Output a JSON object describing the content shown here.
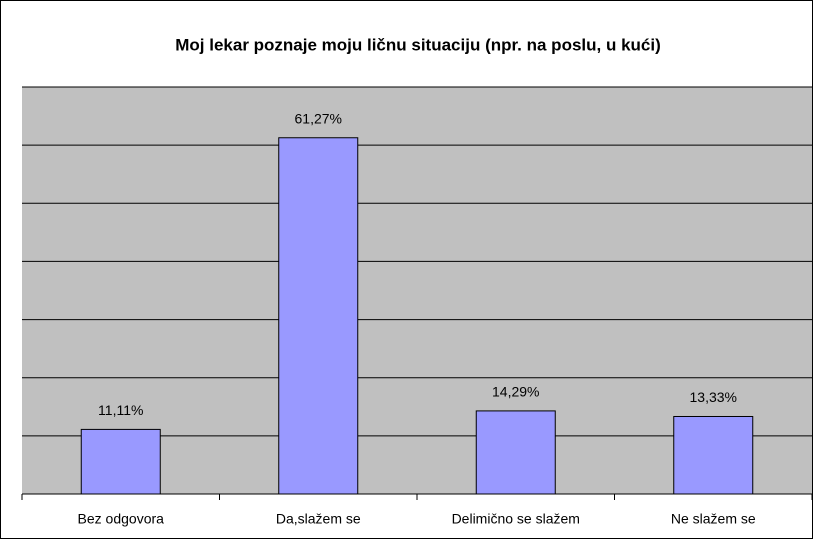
{
  "chart_data": {
    "type": "bar",
    "title": "Moj lekar poznaje moju ličnu situaciju (npr. na poslu, u kući)",
    "categories": [
      "Bez odgovora",
      "Da,slažem se",
      "Delimično se slažem",
      "Ne slažem se"
    ],
    "values": [
      11.11,
      61.27,
      14.29,
      13.33
    ],
    "value_labels": [
      "11,11%",
      "61,27%",
      "14,29%",
      "13,33%"
    ],
    "color": "#9999ff",
    "ylim": [
      0,
      70
    ],
    "yticks": [
      0,
      10,
      20,
      30,
      40,
      50,
      60,
      70
    ],
    "grid": true
  }
}
